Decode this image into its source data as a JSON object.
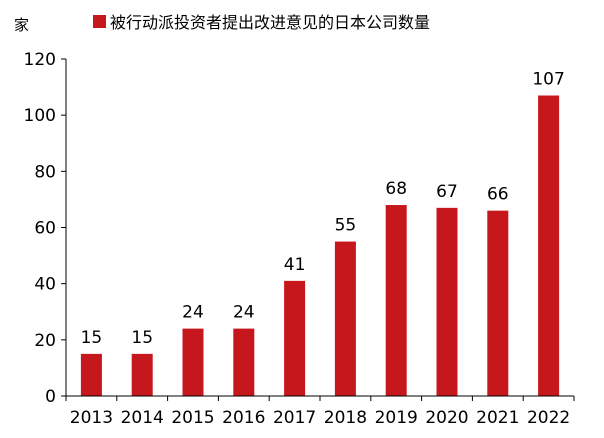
{
  "chart_data": {
    "type": "bar",
    "title": "",
    "xlabel": "",
    "ylabel": "家",
    "categories": [
      "2013",
      "2014",
      "2015",
      "2016",
      "2017",
      "2018",
      "2019",
      "2020",
      "2021",
      "2022"
    ],
    "series": [
      {
        "name": "被行动派投资者提出改进意见的日本公司数量",
        "values": [
          15,
          15,
          24,
          24,
          41,
          55,
          68,
          67,
          66,
          107
        ],
        "color": "#c5171c"
      }
    ],
    "ylim": [
      0,
      120
    ],
    "yticks": [
      0,
      20,
      40,
      60,
      80,
      100,
      120
    ],
    "grid": false,
    "legend": "top-center",
    "data_labels": true
  }
}
